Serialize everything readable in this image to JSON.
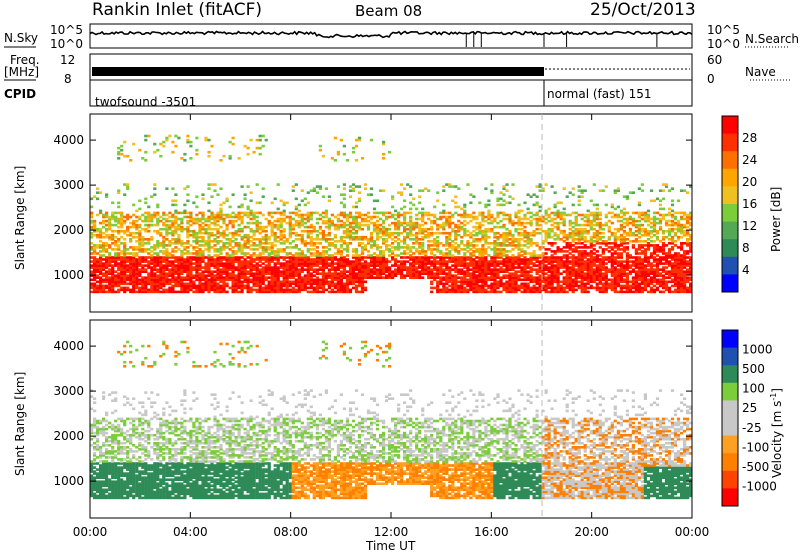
{
  "header": {
    "station": "Rankin Inlet (fitACF)",
    "beam": "Beam 08",
    "date": "25/Oct/2013"
  },
  "status_panels": {
    "nsky_label": "N.Sky",
    "nsky_ticks": [
      "10^5",
      "10^0"
    ],
    "nsearch_label": "N.Search",
    "nsearch_ticks": [
      "10^5",
      "10^0"
    ],
    "freq_label": "Freq.",
    "freq_unit": "[MHz]",
    "freq_ticks": [
      "12",
      "8"
    ],
    "nave_label": "Nave",
    "nave_ticks": [
      "60",
      "0"
    ],
    "cpid_label": "CPID",
    "cpid_entries": [
      {
        "name": "twofsound",
        "id": "-3501"
      },
      {
        "name": "normal (fast)",
        "id": "151"
      }
    ]
  },
  "colors": {
    "power_scale": [
      "#0000ff",
      "#2050b0",
      "#2e8b57",
      "#55a855",
      "#7ccd3c",
      "#f0c020",
      "#ffa500",
      "#ff7000",
      "#ff3000",
      "#ff0000"
    ],
    "velocity_scale": [
      "#ff0000",
      "#ff4400",
      "#ff8000",
      "#ffa020",
      "#c8c8c8",
      "#c8c8c8",
      "#7ccd3c",
      "#2e8b57",
      "#2050b0",
      "#0000ff"
    ]
  },
  "chart_data": [
    {
      "type": "heatmap",
      "quantity": "Power",
      "ylabel": "Slant Range [km]",
      "xlabel": "Time UT",
      "x_ticks": [
        "00:00",
        "04:00",
        "08:00",
        "12:00",
        "16:00",
        "20:00",
        "00:00"
      ],
      "xlim_hours": [
        0,
        24
      ],
      "y_ticks": [
        1000,
        2000,
        3000,
        4000
      ],
      "ylim": [
        180,
        4580
      ],
      "colorbar_label": "Power [dB]",
      "colorbar_ticks": [
        4,
        8,
        12,
        16,
        20,
        24,
        28
      ],
      "colorbar_range": [
        0,
        32
      ],
      "cpid_change_hour": 18.0
    },
    {
      "type": "heatmap",
      "quantity": "Velocity",
      "ylabel": "Slant Range [km]",
      "xlabel": "Time UT",
      "x_ticks": [
        "00:00",
        "04:00",
        "08:00",
        "12:00",
        "16:00",
        "20:00",
        "00:00"
      ],
      "xlim_hours": [
        0,
        24
      ],
      "y_ticks": [
        1000,
        2000,
        3000,
        4000
      ],
      "ylim": [
        180,
        4580
      ],
      "colorbar_label": "Velocity [m s",
      "colorbar_label_sup": "-1",
      "colorbar_label_end": "]",
      "colorbar_ticks": [
        "1000",
        "500",
        "100",
        "25",
        "-25",
        "-100",
        "-500",
        "-1000"
      ],
      "cpid_change_hour": 18.0
    }
  ]
}
